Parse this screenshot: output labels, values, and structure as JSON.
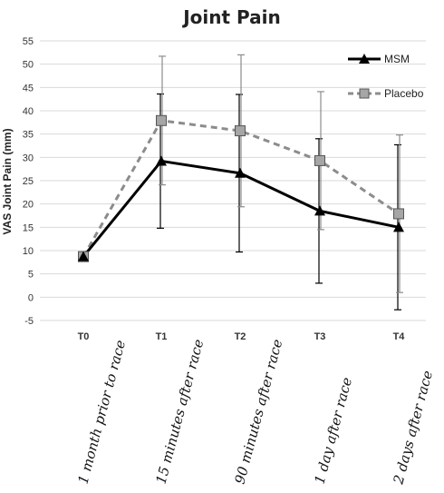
{
  "chart_data": {
    "type": "line",
    "title": "Joint Pain",
    "ylabel": "VAS Joint Pain (mm)",
    "xlabel": "",
    "ylim": [
      -5,
      55
    ],
    "yticks": [
      -5,
      0,
      5,
      10,
      15,
      20,
      25,
      30,
      35,
      40,
      45,
      50,
      55
    ],
    "grid": "horizontal",
    "legend_position": "top-right",
    "categories": [
      "T0",
      "T1",
      "T2",
      "T3",
      "T4"
    ],
    "category_captions": [
      "1 month prior to race",
      "15 minutes after race",
      "90 minutes after race",
      "1 day after race",
      "2 days after race"
    ],
    "series": [
      {
        "name": "MSM",
        "values": [
          8.7,
          29.2,
          26.6,
          18.5,
          15.0
        ],
        "error_low": [
          8.7,
          14.8,
          9.7,
          3.0,
          -2.7
        ],
        "error_high": [
          8.7,
          43.6,
          43.5,
          34.0,
          32.7
        ],
        "color": "#000000",
        "line_style": "solid",
        "marker": "triangle"
      },
      {
        "name": "Placebo",
        "values": [
          8.7,
          37.9,
          35.7,
          29.3,
          17.9
        ],
        "error_low": [
          8.7,
          24.1,
          19.4,
          14.5,
          1.0
        ],
        "error_high": [
          8.7,
          51.7,
          52.0,
          44.1,
          34.8
        ],
        "color": "#8c8c8c",
        "line_style": "dashed",
        "marker": "square"
      }
    ]
  }
}
